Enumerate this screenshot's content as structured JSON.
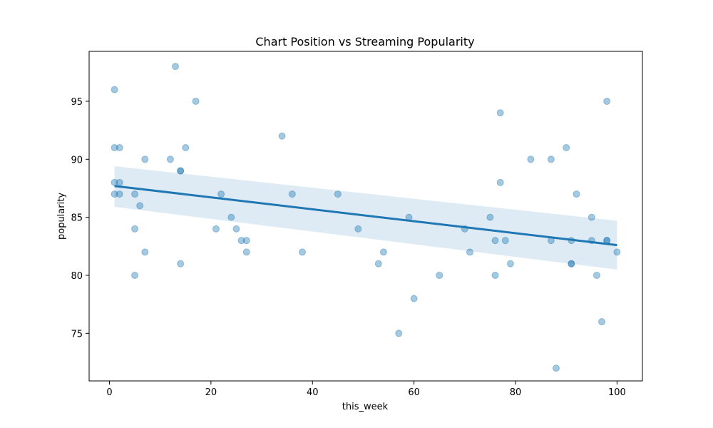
{
  "chart_data": {
    "type": "scatter",
    "title": "Chart Position vs Streaming Popularity",
    "xlabel": "this_week",
    "ylabel": "popularity",
    "xlim": [
      -4,
      105
    ],
    "ylim": [
      70.9,
      99.3
    ],
    "x_ticks": [
      0,
      20,
      40,
      60,
      80,
      100
    ],
    "y_ticks": [
      75,
      80,
      85,
      90,
      95
    ],
    "grid": false,
    "legend": "none",
    "colors": {
      "points": "#1f77b4",
      "regression_line": "#1f77b4",
      "confidence_band": "#1f77b4"
    },
    "regression": {
      "x": [
        1,
        100
      ],
      "y": [
        87.7,
        82.6
      ],
      "ci_lower": [
        85.9,
        80.5
      ],
      "ci_upper": [
        89.4,
        84.7
      ]
    },
    "points": [
      {
        "x": 1,
        "y": 96
      },
      {
        "x": 1,
        "y": 91
      },
      {
        "x": 1,
        "y": 88
      },
      {
        "x": 1,
        "y": 87
      },
      {
        "x": 2,
        "y": 91
      },
      {
        "x": 2,
        "y": 88
      },
      {
        "x": 2,
        "y": 87
      },
      {
        "x": 5,
        "y": 87
      },
      {
        "x": 5,
        "y": 84
      },
      {
        "x": 5,
        "y": 80
      },
      {
        "x": 6,
        "y": 86
      },
      {
        "x": 7,
        "y": 90
      },
      {
        "x": 7,
        "y": 82
      },
      {
        "x": 12,
        "y": 90
      },
      {
        "x": 13,
        "y": 98
      },
      {
        "x": 14,
        "y": 89
      },
      {
        "x": 14,
        "y": 89
      },
      {
        "x": 14,
        "y": 81
      },
      {
        "x": 15,
        "y": 91
      },
      {
        "x": 17,
        "y": 95
      },
      {
        "x": 21,
        "y": 84
      },
      {
        "x": 22,
        "y": 87
      },
      {
        "x": 24,
        "y": 85
      },
      {
        "x": 25,
        "y": 84
      },
      {
        "x": 26,
        "y": 83
      },
      {
        "x": 27,
        "y": 83
      },
      {
        "x": 27,
        "y": 82
      },
      {
        "x": 34,
        "y": 92
      },
      {
        "x": 36,
        "y": 87
      },
      {
        "x": 38,
        "y": 82
      },
      {
        "x": 45,
        "y": 87
      },
      {
        "x": 49,
        "y": 84
      },
      {
        "x": 53,
        "y": 81
      },
      {
        "x": 54,
        "y": 82
      },
      {
        "x": 57,
        "y": 75
      },
      {
        "x": 59,
        "y": 85
      },
      {
        "x": 60,
        "y": 78
      },
      {
        "x": 65,
        "y": 80
      },
      {
        "x": 70,
        "y": 84
      },
      {
        "x": 71,
        "y": 82
      },
      {
        "x": 75,
        "y": 85
      },
      {
        "x": 76,
        "y": 83
      },
      {
        "x": 76,
        "y": 80
      },
      {
        "x": 77,
        "y": 94
      },
      {
        "x": 77,
        "y": 88
      },
      {
        "x": 78,
        "y": 83
      },
      {
        "x": 79,
        "y": 81
      },
      {
        "x": 83,
        "y": 90
      },
      {
        "x": 87,
        "y": 90
      },
      {
        "x": 87,
        "y": 83
      },
      {
        "x": 88,
        "y": 72
      },
      {
        "x": 90,
        "y": 91
      },
      {
        "x": 91,
        "y": 83
      },
      {
        "x": 91,
        "y": 81
      },
      {
        "x": 91,
        "y": 81
      },
      {
        "x": 92,
        "y": 87
      },
      {
        "x": 95,
        "y": 85
      },
      {
        "x": 95,
        "y": 83
      },
      {
        "x": 96,
        "y": 80
      },
      {
        "x": 97,
        "y": 76
      },
      {
        "x": 98,
        "y": 95
      },
      {
        "x": 98,
        "y": 83
      },
      {
        "x": 98,
        "y": 83
      },
      {
        "x": 100,
        "y": 82
      }
    ]
  }
}
